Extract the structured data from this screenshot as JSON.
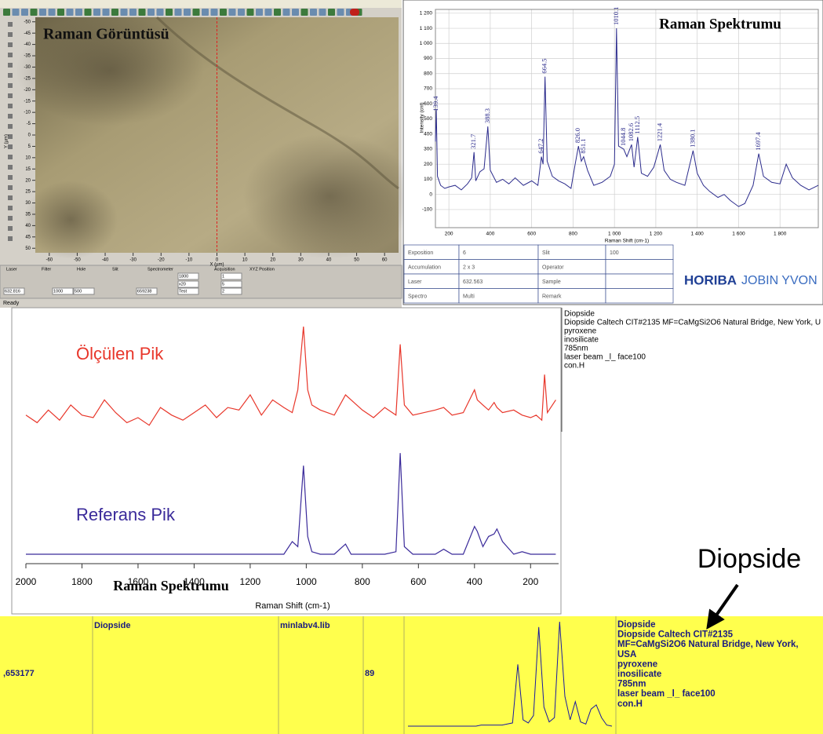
{
  "image_panel": {
    "title": "Raman Görüntüsü",
    "x_label": "X (µm)",
    "y_label": "Y (µm)",
    "xlim": [
      -65,
      65
    ],
    "ylim": [
      -52,
      52
    ],
    "xticks": [
      -60,
      -50,
      -40,
      -30,
      -20,
      -10,
      0,
      10,
      20,
      30,
      40,
      50,
      60
    ],
    "yticks": [
      -50,
      -45,
      -40,
      -35,
      -30,
      -25,
      -20,
      -15,
      -10,
      -5,
      0,
      5,
      10,
      15,
      20,
      25,
      30,
      35,
      40,
      45,
      50
    ],
    "controls": [
      "Laser",
      "Filter",
      "Hole",
      "Slit",
      "Spectrometer",
      "Acquisition",
      "XYZ Position"
    ],
    "control_values": [
      "632.816",
      "1000",
      "500",
      "659238",
      "1800",
      "x20",
      "Test",
      "1",
      "5",
      "2"
    ],
    "status": "Ready"
  },
  "chart_data": [
    {
      "type": "line",
      "title": "Raman Spektrumu",
      "x_label": "Raman Shift (cm-1)",
      "y_label": "Intensity (cnt)",
      "xlim": [
        135,
        1985
      ],
      "ylim": [
        -220,
        1225
      ],
      "grid": true,
      "xticks": [
        200,
        400,
        600,
        800,
        {
          "value": 1000,
          "label": "1 000"
        },
        {
          "value": 1200,
          "label": "1 200"
        },
        {
          "value": 1400,
          "label": "1 400"
        },
        {
          "value": 1600,
          "label": "1 600"
        },
        {
          "value": 1800,
          "label": "1 800"
        }
      ],
      "yticks": [
        -100,
        0,
        100,
        200,
        300,
        400,
        500,
        600,
        700,
        800,
        900,
        {
          "value": 1000,
          "label": "1 000"
        },
        {
          "value": 1100,
          "label": "1 100"
        },
        {
          "value": 1200,
          "label": "1 200"
        }
      ],
      "peaks": [
        139.4,
        321.7,
        388.3,
        647.2,
        664.5,
        {
          "value": 826,
          "label": "826.0"
        },
        851.1,
        1010.1,
        1044.8,
        1082.6,
        1112.5,
        1221.4,
        1380.1,
        1697.4
      ],
      "x": [
        135,
        139,
        145,
        160,
        180,
        200,
        230,
        260,
        290,
        310,
        321.7,
        330,
        350,
        370,
        388.3,
        400,
        430,
        460,
        490,
        520,
        560,
        600,
        630,
        647.2,
        655,
        664.5,
        675,
        700,
        730,
        760,
        790,
        810,
        826,
        840,
        851.1,
        870,
        900,
        940,
        980,
        1000,
        1010.1,
        1020,
        1044.8,
        1060,
        1082.6,
        1095,
        1112.5,
        1130,
        1160,
        1190,
        1221.4,
        1240,
        1270,
        1300,
        1340,
        1380.1,
        1400,
        1430,
        1460,
        1500,
        1530,
        1560,
        1600,
        1630,
        1670,
        1697.4,
        1720,
        1760,
        1800,
        1830,
        1860,
        1900,
        1940,
        1985
      ],
      "series": [
        {
          "color": "#2b2b8c",
          "values": [
            350,
            560,
            120,
            60,
            40,
            50,
            60,
            30,
            70,
            110,
            280,
            90,
            150,
            170,
            450,
            160,
            80,
            100,
            70,
            110,
            60,
            90,
            60,
            250,
            200,
            780,
            220,
            120,
            90,
            70,
            40,
            200,
            320,
            220,
            250,
            160,
            60,
            80,
            120,
            200,
            1100,
            320,
            300,
            250,
            330,
            180,
            380,
            140,
            120,
            180,
            330,
            160,
            100,
            80,
            60,
            290,
            140,
            60,
            20,
            -20,
            0,
            -40,
            -80,
            -60,
            60,
            270,
            120,
            80,
            70,
            200,
            110,
            60,
            30,
            60
          ]
        }
      ]
    },
    {
      "type": "line",
      "title": "Raman Spektrumu",
      "x_label": "Raman Shift (cm-1)",
      "xlim": [
        2000,
        100
      ],
      "xticks": [
        2000,
        1800,
        1600,
        1400,
        1200,
        1000,
        800,
        600,
        400,
        200
      ],
      "x": [
        2000,
        1960,
        1920,
        1880,
        1840,
        1800,
        1760,
        1720,
        1680,
        1640,
        1600,
        1560,
        1520,
        1480,
        1440,
        1400,
        1360,
        1320,
        1280,
        1240,
        1200,
        1160,
        1120,
        1080,
        1050,
        1030,
        1010,
        995,
        980,
        950,
        900,
        860,
        840,
        800,
        760,
        720,
        680,
        665,
        650,
        620,
        580,
        540,
        510,
        480,
        440,
        400,
        390,
        370,
        350,
        330,
        320,
        300,
        260,
        230,
        200,
        180,
        160,
        150,
        140,
        110
      ],
      "series": [
        {
          "name": "Ölçülen Pik",
          "color": "#e8362a",
          "values": [
            60,
            57,
            62,
            58,
            64,
            60,
            59,
            66,
            61,
            57,
            59,
            56,
            63,
            60,
            58,
            61,
            64,
            59,
            63,
            62,
            68,
            60,
            66,
            63,
            61,
            70,
            95,
            70,
            64,
            62,
            60,
            68,
            66,
            62,
            59,
            63,
            60,
            88,
            64,
            60,
            61,
            62,
            63,
            60,
            61,
            70,
            66,
            64,
            62,
            65,
            63,
            61,
            62,
            60,
            59,
            60,
            58,
            76,
            61,
            66
          ]
        },
        {
          "name": "Referans Pik",
          "color": "#3a2a9a",
          "values": [
            5,
            5,
            5,
            5,
            5,
            5,
            5,
            5,
            5,
            5,
            5,
            5,
            5,
            5,
            5,
            5,
            5,
            5,
            5,
            5,
            5,
            5,
            5,
            5,
            10,
            8,
            40,
            12,
            6,
            5,
            5,
            9,
            5,
            5,
            5,
            5,
            6,
            45,
            8,
            5,
            5,
            5,
            7,
            5,
            5,
            16,
            14,
            8,
            12,
            13,
            15,
            10,
            5,
            6,
            5,
            5,
            5,
            5,
            5,
            5
          ]
        }
      ]
    },
    {
      "type": "line",
      "series": [
        {
          "color": "#1a1aa0",
          "values": [
            2,
            2,
            2,
            2,
            2,
            2,
            2,
            2,
            2,
            2,
            2,
            2,
            2,
            2,
            3,
            3,
            3,
            3,
            3,
            4,
            5,
            60,
            8,
            5,
            12,
            95,
            20,
            6,
            10,
            100,
            30,
            8,
            25,
            6,
            4,
            18,
            22,
            10,
            3,
            2
          ]
        }
      ]
    }
  ],
  "info_table": [
    [
      "Exposition",
      "6",
      "Slit",
      "100"
    ],
    [
      "Accumulation",
      "2 x 3",
      "Operator"
    ],
    [
      "Laser",
      "632.563",
      "Sample"
    ],
    [
      "Spectro",
      "Multi",
      "Remark"
    ]
  ],
  "logo": {
    "brand": "HORIBA",
    "sub": "JOBIN YVON"
  },
  "library_text": [
    "Diopside",
    "Diopside  Caltech CIT#2135  MF=CaMgSi2O6  Natural Bridge, New York, U",
    "pyroxene",
    "inosilicate",
    "785nm",
    "laser beam _l_ face100",
    "con.H"
  ],
  "callout": "Diopside",
  "result_row": {
    "cells": [
      ",653177",
      "Diopside",
      "minlabv4.lib",
      "89"
    ],
    "description": [
      "Diopside",
      "Diopside  Caltech CIT#2135",
      "MF=CaMgSi2O6  Natural Bridge, New York,",
      "USA",
      "pyroxene",
      "inosilicate",
      "785nm",
      "laser beam _l_ face100",
      "con.H"
    ]
  }
}
